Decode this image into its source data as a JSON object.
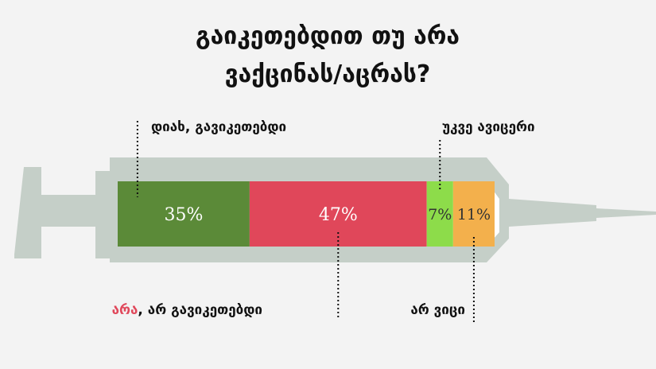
{
  "chart_data": {
    "type": "stacked-bar",
    "title": [
      "გაიკეთებდით თუ არა",
      "ვაქცინას/აცრას?"
    ],
    "xlim": [
      0,
      100
    ],
    "series": [
      {
        "name": "დიახ, გავიკეთებდი",
        "color": "#5b8a38",
        "values": [
          35
        ],
        "value_labels": [
          "35%"
        ]
      },
      {
        "name": "არა, არ გავიკეთებდი",
        "color": "#e0475a",
        "values": [
          47
        ],
        "value_labels": [
          "47%"
        ]
      },
      {
        "name": "უკვე ავიცერი",
        "color": "#8ddc4a",
        "values": [
          7
        ],
        "value_labels": [
          "7%"
        ]
      },
      {
        "name": "არ ვიცი",
        "color": "#f3b04c",
        "values": [
          11
        ],
        "value_labels": [
          "11%"
        ]
      }
    ]
  }
}
